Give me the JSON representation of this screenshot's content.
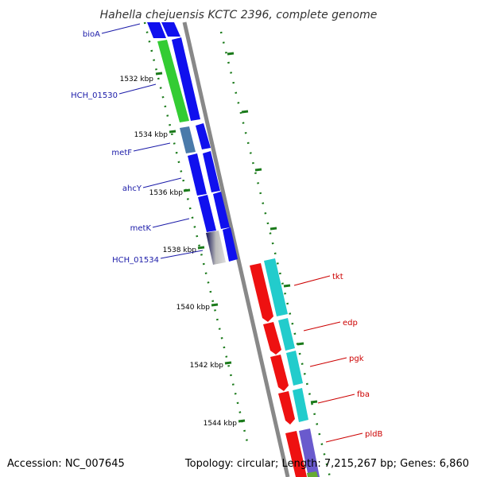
{
  "title": "Hahella chejuensis KCTC 2396, complete genome",
  "footer": {
    "accession": "Accession: NC_007645",
    "summary": "Topology: circular; Length: 7,215,267 bp; Genes: 6,860"
  },
  "ticks": [
    "1532 kbp",
    "1534 kbp",
    "1536 kbp",
    "1538 kbp",
    "1540 kbp",
    "1542 kbp",
    "1544 kbp"
  ],
  "left_genes": [
    "bioA",
    "HCH_01530",
    "metF",
    "ahcY",
    "metK",
    "HCH_01534"
  ],
  "right_genes": [
    "tkt",
    "edp",
    "pgk",
    "fba",
    "pldB"
  ],
  "colors": {
    "left_label": "#1a1aa8",
    "right_label": "#cc0000",
    "backbone": "#888888",
    "tick": "#1a7a1a",
    "gene_blue": "#1010ee",
    "gene_green": "#33cc33",
    "gene_steel": "#4a7aaa",
    "gene_red": "#ee1111",
    "gene_cyan": "#22cccc",
    "gene_purple": "#6a5acd"
  }
}
